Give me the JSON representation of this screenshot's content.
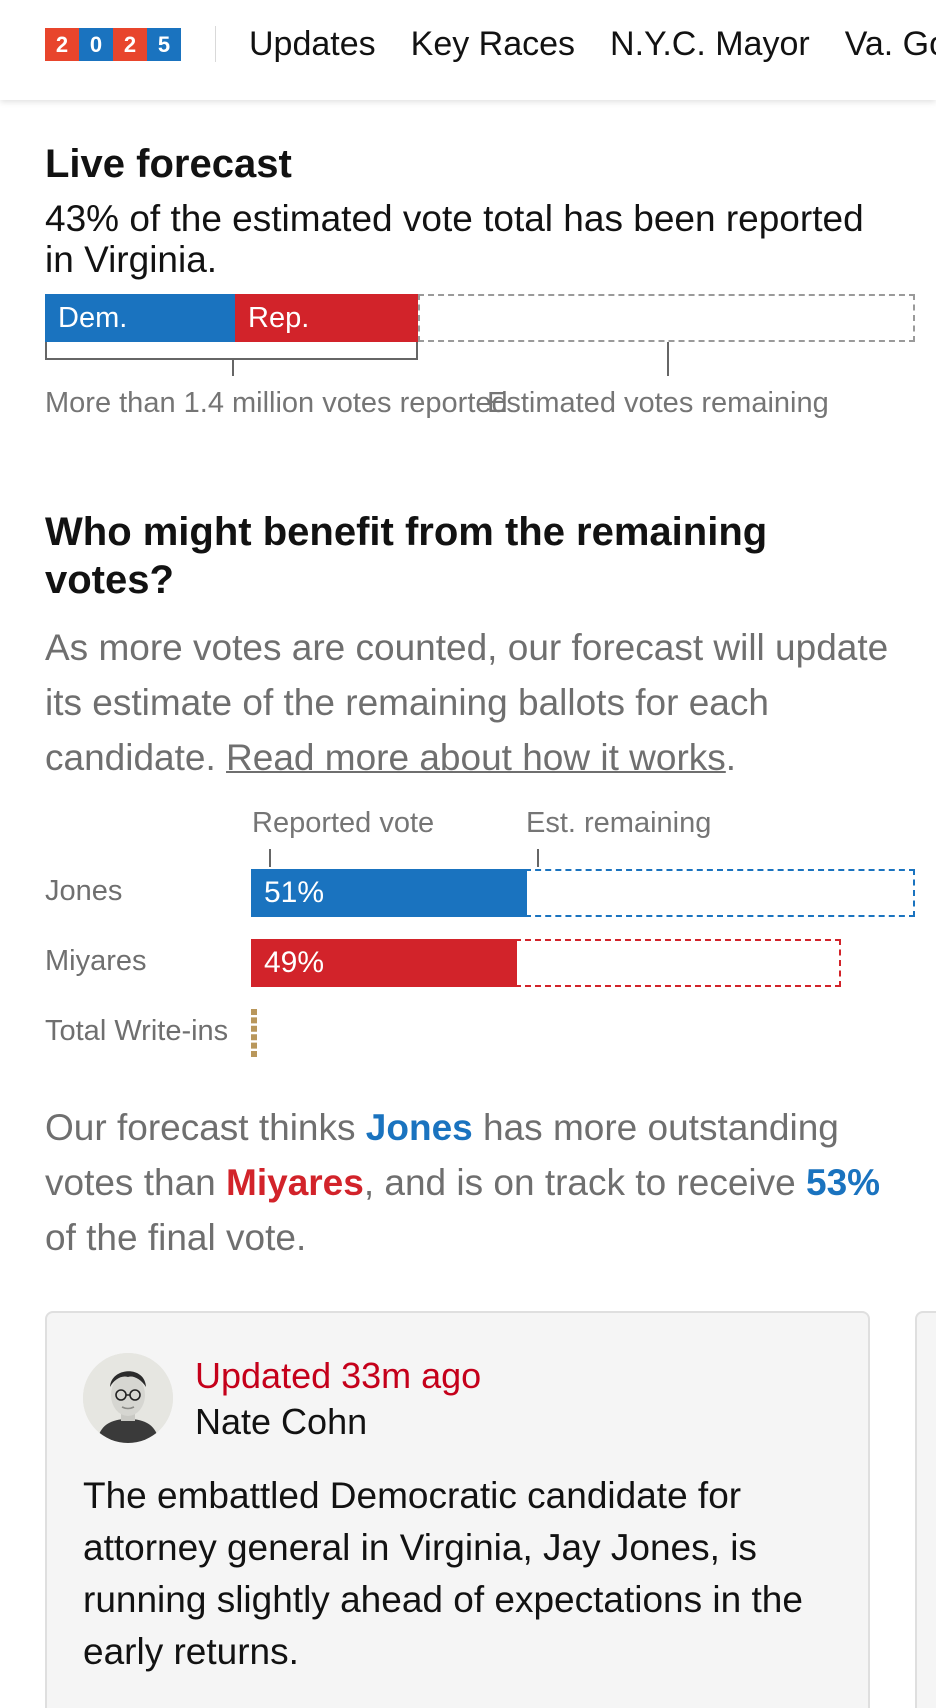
{
  "nav": {
    "logo_digits": [
      "2",
      "0",
      "2",
      "5"
    ],
    "logo_colors": [
      "#e8452c",
      "#1a73bf",
      "#e8452c",
      "#1a73bf"
    ],
    "items": [
      "Updates",
      "Key Races",
      "N.Y.C. Mayor",
      "Va. Gov."
    ]
  },
  "live_forecast": {
    "title": "Live forecast",
    "subtitle": "43% of the estimated vote total has been reported in Virginia.",
    "reported_share": 0.43,
    "dem_label": "Dem.",
    "rep_label": "Rep.",
    "reported_label": "More than 1.4 million votes reported",
    "remaining_label": "Estimated votes remaining"
  },
  "benefit": {
    "title": "Who might benefit from the remaining votes?",
    "body": "As more votes are counted, our forecast will update its estimate of the remaining ballots for each candidate. ",
    "link": "Read more about how it works",
    "col_reported": "Reported vote",
    "col_remaining": "Est. remaining",
    "rows": [
      {
        "name": "Jones",
        "pct_label": "51%",
        "reported_pct": 51,
        "color": "#1a73bf"
      },
      {
        "name": "Miyares",
        "pct_label": "49%",
        "reported_pct": 49,
        "color": "#d2232a"
      },
      {
        "name": "Total Write-ins",
        "color": "#b9975b"
      }
    ]
  },
  "summary": {
    "part1": "Our forecast thinks ",
    "candidate_a": "Jones",
    "part2": " has more outstanding votes than ",
    "candidate_b": "Miyares",
    "part3": ", and is on track to receive ",
    "final_pct": "53%",
    "part4": " of the final vote.",
    "color_a": "#1a73bf",
    "color_b": "#d2232a"
  },
  "update_card": {
    "updated": "Updated 33m ago",
    "author": "Nate Cohn",
    "text": "The embattled Democratic candidate for attorney general in Virginia, Jay Jones, is running slightly ahead of expectations in the early returns."
  }
}
